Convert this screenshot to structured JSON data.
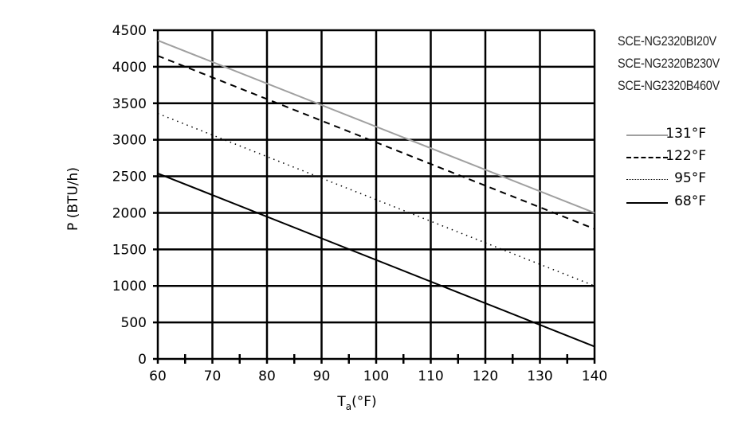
{
  "chart_data": {
    "type": "line",
    "title": "",
    "xlabel": "Ta(°F)",
    "xlabel_main": "T",
    "xlabel_sub": "a",
    "xlabel_unit": "(°F)",
    "ylabel": "P (BTU/h)",
    "xlim": [
      60,
      140
    ],
    "ylim": [
      0,
      4500
    ],
    "x_ticks": [
      60,
      70,
      80,
      90,
      100,
      110,
      120,
      130,
      140
    ],
    "x_minor_ticks": [
      65,
      75,
      85,
      95,
      105,
      115,
      125,
      135
    ],
    "y_ticks": [
      0,
      500,
      1000,
      1500,
      2000,
      2500,
      3000,
      3500,
      4000,
      4500
    ],
    "grid": true,
    "legend_position": "right",
    "models": [
      "SCE-NG2320BI20V",
      "SCE-NG2320B230V",
      "SCE-NG2320B460V"
    ],
    "x": [
      60,
      140
    ],
    "series": [
      {
        "name": "131°F",
        "values": [
          4360,
          2000
        ],
        "style": "solid",
        "color": "#a0a0a0"
      },
      {
        "name": "122°F",
        "values": [
          4150,
          1780
        ],
        "style": "dashed",
        "color": "#000000"
      },
      {
        "name": "95°F",
        "values": [
          3360,
          1000
        ],
        "style": "dotted",
        "color": "#000000"
      },
      {
        "name": "68°F",
        "values": [
          2540,
          170
        ],
        "style": "solid",
        "color": "#000000"
      }
    ]
  }
}
